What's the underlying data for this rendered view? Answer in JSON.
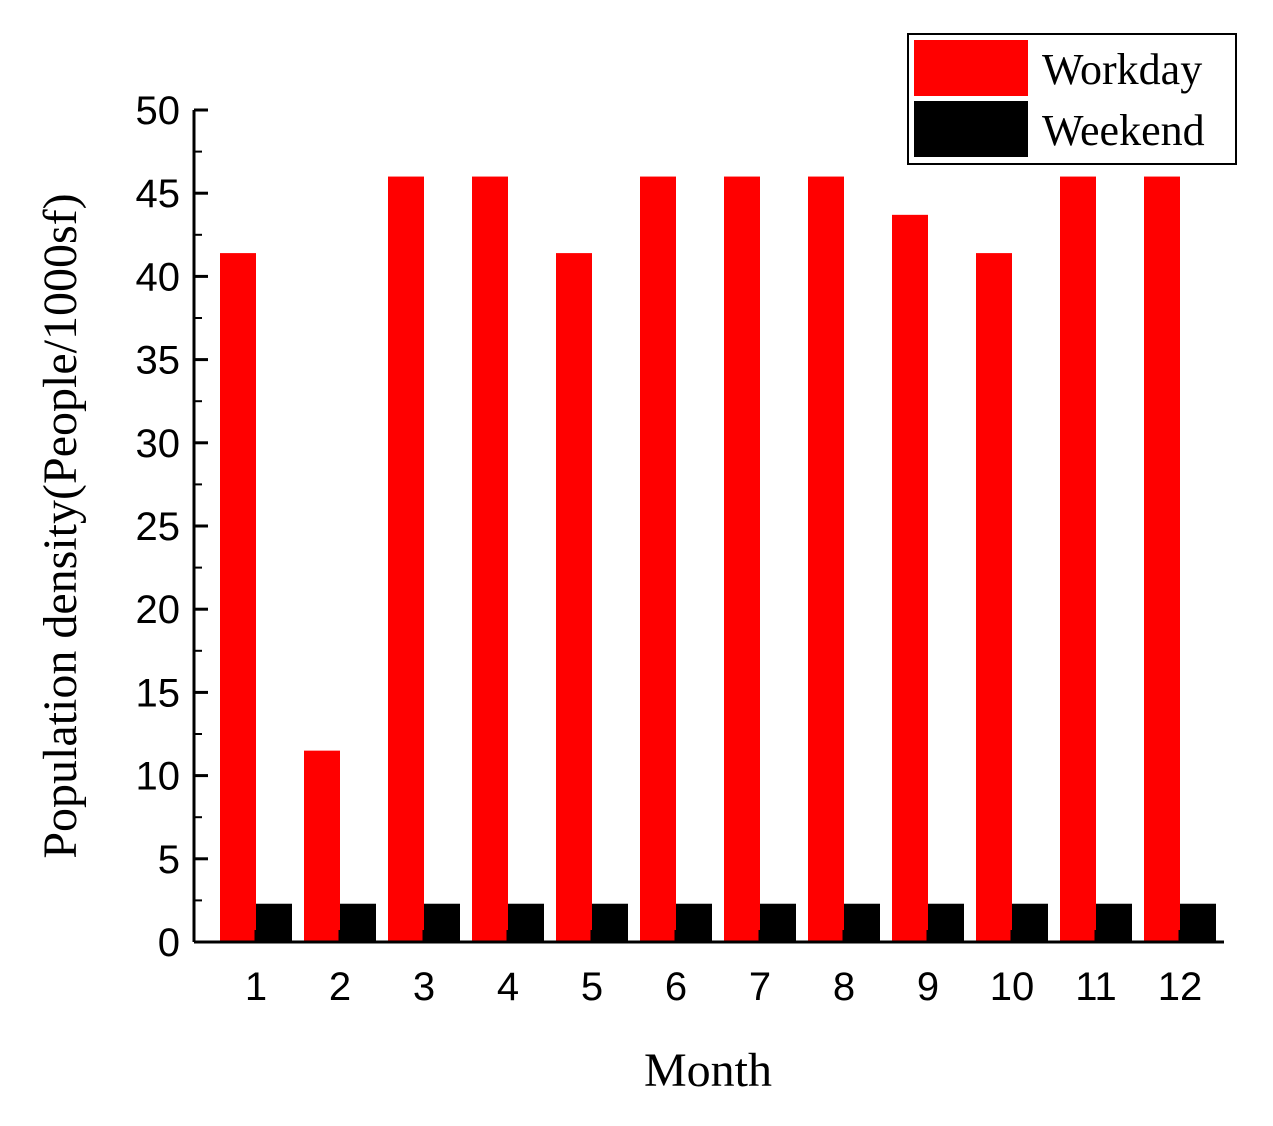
{
  "chart_data": {
    "type": "bar",
    "categories": [
      "1",
      "2",
      "3",
      "4",
      "5",
      "6",
      "7",
      "8",
      "9",
      "10",
      "11",
      "12"
    ],
    "series": [
      {
        "name": "Workday",
        "color": "#ff0000",
        "values": [
          41.4,
          11.5,
          46.0,
          46.0,
          41.4,
          46.0,
          46.0,
          46.0,
          43.7,
          41.4,
          46.0,
          46.0
        ]
      },
      {
        "name": "Weekend",
        "color": "#000000",
        "values": [
          2.3,
          2.3,
          2.3,
          2.3,
          2.3,
          2.3,
          2.3,
          2.3,
          2.3,
          2.3,
          2.3,
          2.3
        ]
      }
    ],
    "xlabel": "Month",
    "ylabel": "Population density(People/1000sf)",
    "ylim": [
      0,
      50
    ],
    "yticks": [
      0,
      5,
      10,
      15,
      20,
      25,
      30,
      35,
      40,
      45,
      50
    ],
    "grid": false,
    "legend": "top-right"
  }
}
